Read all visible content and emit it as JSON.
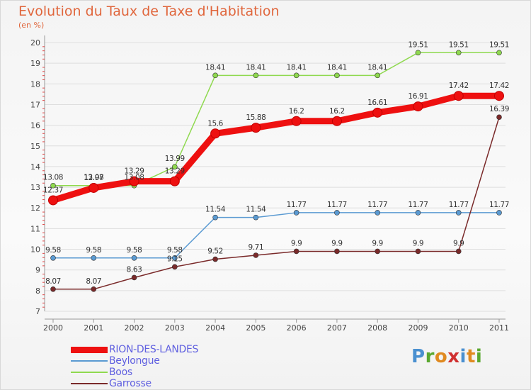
{
  "title": "Evolution du Taux de Taxe d'Habitation",
  "subtitle": "(en %)",
  "logo": {
    "text": "Proxiti",
    "letter_colors": [
      "#4a90d0",
      "#5aa830",
      "#e08a20",
      "#d03030",
      "#4a90d0",
      "#e08a20",
      "#5aa830"
    ]
  },
  "chart_data": {
    "type": "line",
    "x": [
      2000,
      2001,
      2002,
      2003,
      2004,
      2005,
      2006,
      2007,
      2008,
      2009,
      2010,
      2011
    ],
    "xlabels": [
      "2000",
      "2001",
      "2002",
      "2003",
      "2004",
      "2005",
      "2006",
      "2007",
      "2008",
      "2009",
      "2010",
      "2011"
    ],
    "ylim": [
      7,
      20
    ],
    "yticks": [
      7,
      8,
      9,
      10,
      11,
      12,
      13,
      14,
      15,
      16,
      17,
      18,
      19,
      20
    ],
    "ytick_labels": [
      "7",
      "8",
      "9",
      "10",
      "11",
      "12",
      "13",
      "14",
      "15",
      "16",
      "17",
      "18",
      "19",
      "20"
    ],
    "grid": "horizontal",
    "legend_position": "bottom-left",
    "series": [
      {
        "name": "RION-DES-LANDES",
        "color": "#ee1010",
        "emphasis": true,
        "values": [
          12.37,
          12.97,
          13.29,
          13.29,
          15.6,
          15.88,
          16.2,
          16.2,
          16.61,
          16.91,
          17.42,
          17.42
        ],
        "labels": [
          "12.37",
          "12.97",
          "13.29",
          "13.29",
          "15.6",
          "15.88",
          "16.2",
          "16.2",
          "16.61",
          "16.91",
          "17.42",
          "17.42"
        ]
      },
      {
        "name": "Beylongue",
        "color": "#5a9ad2",
        "emphasis": false,
        "values": [
          9.58,
          9.58,
          9.58,
          9.58,
          11.54,
          11.54,
          11.77,
          11.77,
          11.77,
          11.77,
          11.77,
          11.77
        ],
        "labels": [
          "9.58",
          "9.58",
          "9.58",
          "9.58",
          "11.54",
          "11.54",
          "11.77",
          "11.77",
          "11.77",
          "11.77",
          "11.77",
          "11.77"
        ]
      },
      {
        "name": "Boos",
        "color": "#8fd94f",
        "emphasis": false,
        "values": [
          13.08,
          13.08,
          13.08,
          13.99,
          18.41,
          18.41,
          18.41,
          18.41,
          18.41,
          19.51,
          19.51,
          19.51
        ],
        "labels": [
          "13.08",
          "13.08",
          "13.08",
          "13.99",
          "18.41",
          "18.41",
          "18.41",
          "18.41",
          "18.41",
          "19.51",
          "19.51",
          "19.51"
        ]
      },
      {
        "name": "Garrosse",
        "color": "#7a2a2a",
        "emphasis": false,
        "values": [
          8.07,
          8.07,
          8.63,
          9.15,
          9.52,
          9.71,
          9.9,
          9.9,
          9.9,
          9.9,
          9.9,
          16.39
        ],
        "labels": [
          "8.07",
          "8.07",
          "8.63",
          "9.15",
          "9.52",
          "9.71",
          "9.9",
          "9.9",
          "9.9",
          "9.9",
          "9.9",
          "16.39"
        ]
      }
    ]
  }
}
